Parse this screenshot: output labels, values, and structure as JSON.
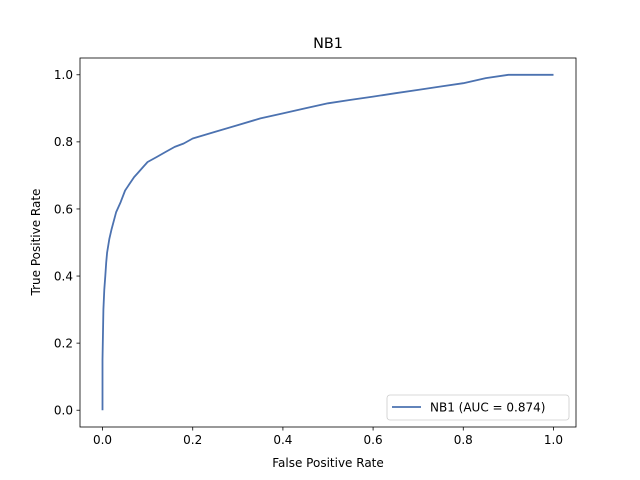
{
  "chart_data": {
    "type": "line",
    "title": "NB1",
    "xlabel": "False Positive Rate",
    "ylabel": "True Positive Rate",
    "xlim": [
      -0.05,
      1.05
    ],
    "ylim": [
      -0.05,
      1.05
    ],
    "xticks": [
      0.0,
      0.2,
      0.4,
      0.6,
      0.8,
      1.0
    ],
    "xtick_labels": [
      "0.0",
      "0.2",
      "0.4",
      "0.6",
      "0.8",
      "1.0"
    ],
    "yticks": [
      0.0,
      0.2,
      0.4,
      0.6,
      0.8,
      1.0
    ],
    "ytick_labels": [
      "0.0",
      "0.2",
      "0.4",
      "0.6",
      "0.8",
      "1.0"
    ],
    "grid": false,
    "legend_position": "lower-right",
    "series": [
      {
        "name": "NB1 (AUC = 0.874)",
        "color": "#4c72b0",
        "x": [
          0.0,
          0.0,
          0.002,
          0.004,
          0.006,
          0.008,
          0.01,
          0.015,
          0.02,
          0.03,
          0.04,
          0.05,
          0.06,
          0.07,
          0.08,
          0.09,
          0.1,
          0.12,
          0.14,
          0.16,
          0.18,
          0.2,
          0.25,
          0.3,
          0.35,
          0.4,
          0.45,
          0.5,
          0.55,
          0.6,
          0.65,
          0.7,
          0.75,
          0.8,
          0.85,
          0.9,
          1.0
        ],
        "y": [
          0.0,
          0.15,
          0.3,
          0.36,
          0.4,
          0.44,
          0.47,
          0.51,
          0.54,
          0.59,
          0.62,
          0.655,
          0.675,
          0.695,
          0.71,
          0.725,
          0.74,
          0.755,
          0.77,
          0.785,
          0.795,
          0.81,
          0.83,
          0.85,
          0.87,
          0.885,
          0.9,
          0.915,
          0.925,
          0.935,
          0.945,
          0.955,
          0.965,
          0.975,
          0.99,
          1.0,
          1.0
        ]
      }
    ]
  }
}
